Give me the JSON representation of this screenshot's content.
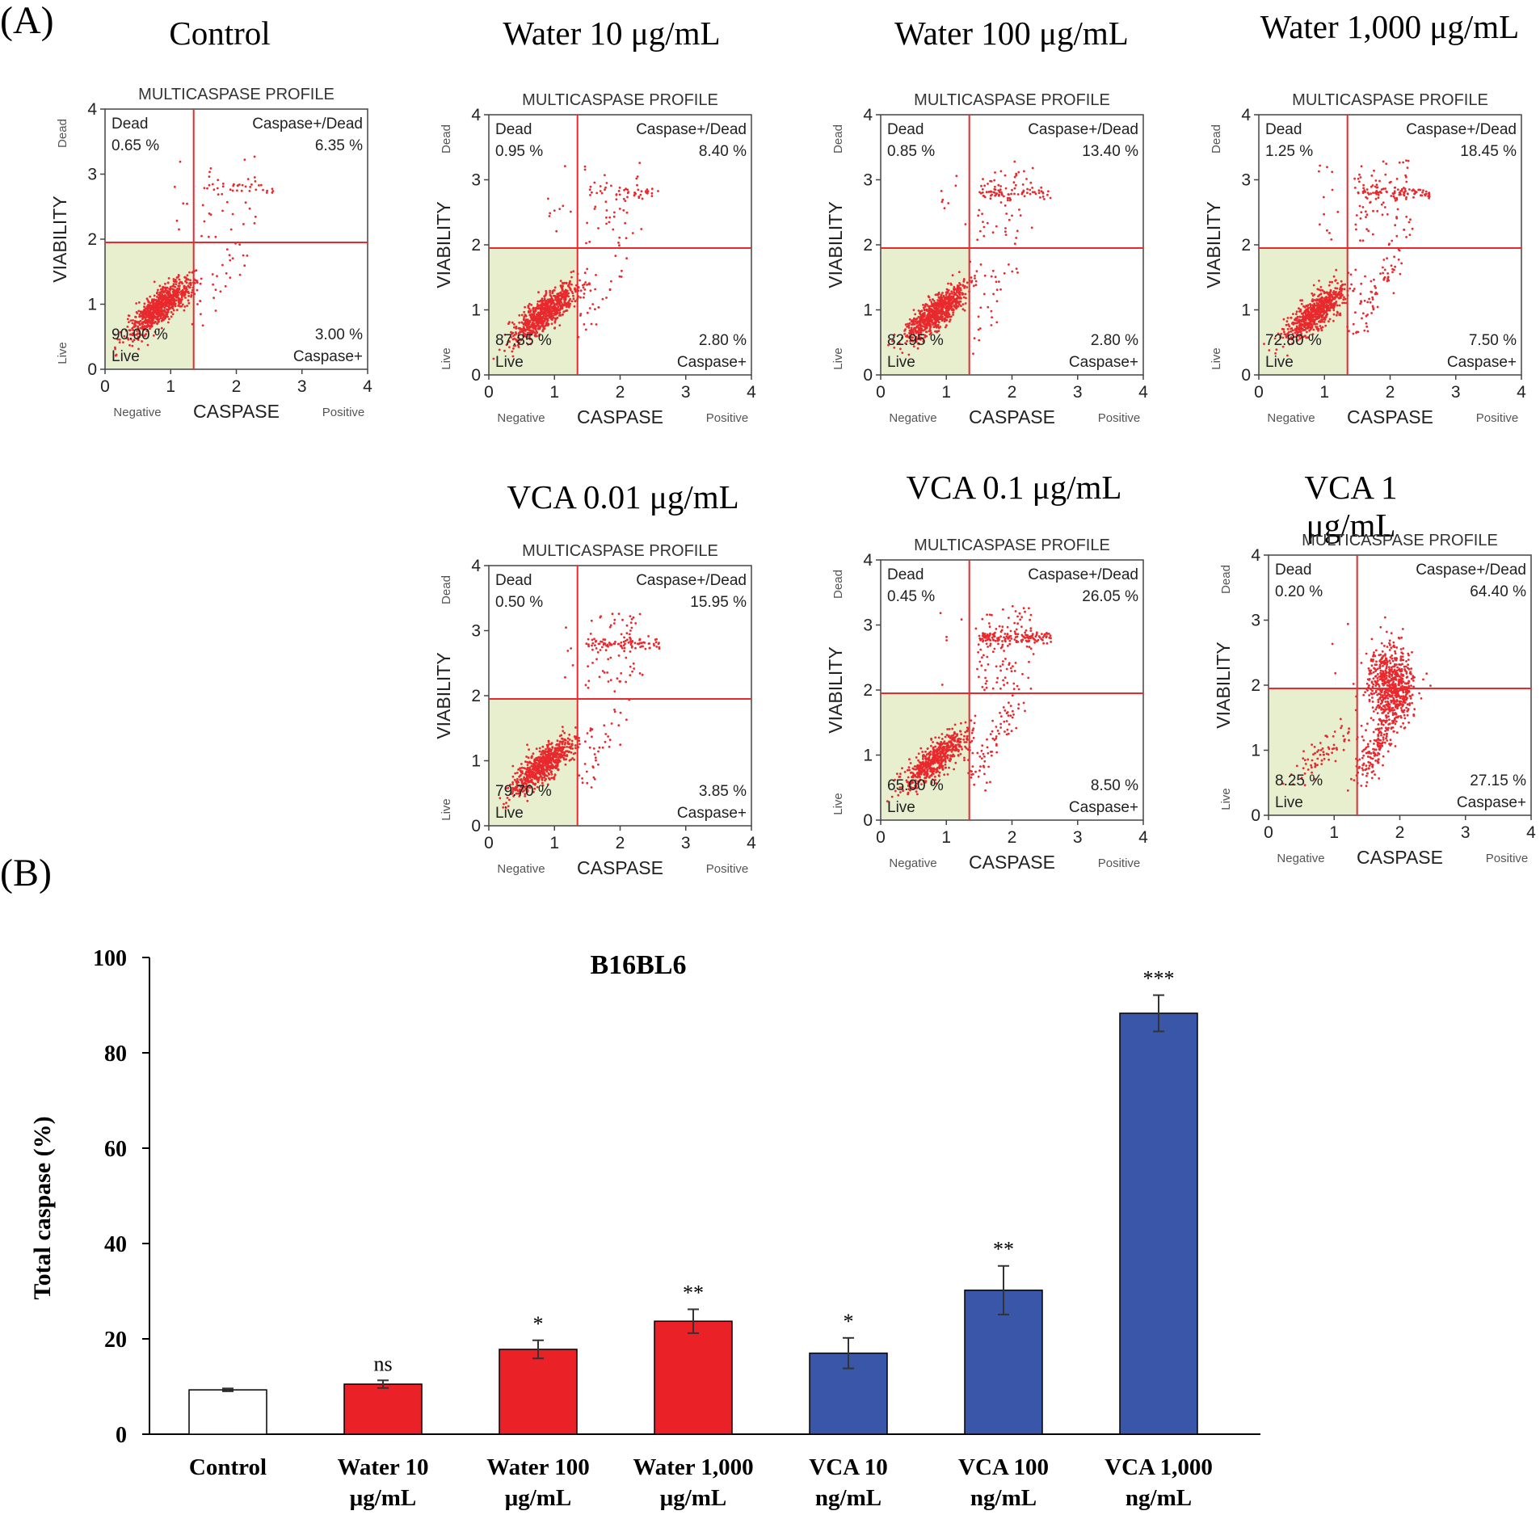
{
  "panel_labels": {
    "a": "(A)",
    "b": "(B)"
  },
  "flow_common": {
    "profile_title": "MULTICASPASE PROFILE",
    "x_axis_label": "CASPASE",
    "y_axis_label": "VIABILITY",
    "x_neg_label": "Negative",
    "x_pos_label": "Positive",
    "y_top_label": "Dead",
    "y_bottom_label": "Live",
    "ticks": [
      "0",
      "1",
      "2",
      "3",
      "4"
    ],
    "quad_dead_label": "Dead",
    "quad_casdead_label": "Caspase+/Dead",
    "quad_live_label": "Live",
    "quad_cas_label": "Caspase+",
    "gate_x": 1.35,
    "gate_y": 1.95
  },
  "flow_plots": [
    {
      "title": "Control",
      "dead": "0.65 %",
      "casdead": "6.35 %",
      "live": "90.00 %",
      "cas": "3.00 %"
    },
    {
      "title": "Water 10 μg/mL",
      "dead": "0.95 %",
      "casdead": "8.40 %",
      "live": "87.85 %",
      "cas": "2.80 %"
    },
    {
      "title": "Water 100 μg/mL",
      "dead": "0.85 %",
      "casdead": "13.40 %",
      "live": "82.95 %",
      "cas": "2.80 %"
    },
    {
      "title": "Water 1,000 μg/mL",
      "dead": "1.25 %",
      "casdead": "18.45 %",
      "live": "72.80 %",
      "cas": "7.50 %"
    },
    {
      "title": "VCA 0.01 μg/mL",
      "dead": "0.50 %",
      "casdead": "15.95 %",
      "live": "79.70 %",
      "cas": "3.85 %"
    },
    {
      "title": "VCA 0.1 μg/mL",
      "dead": "0.45 %",
      "casdead": "26.05 %",
      "live": "65.00 %",
      "cas": "8.50 %"
    },
    {
      "title": "VCA 1 μg/mL",
      "dead": "0.20 %",
      "casdead": "64.40 %",
      "live": "8.25 %",
      "cas": "27.15 %"
    }
  ],
  "chart_data": {
    "type": "bar",
    "title": "B16BL6",
    "xlabel": "",
    "ylabel": "Total caspase (%)",
    "ylim": [
      0,
      100
    ],
    "yticks": [
      0,
      20,
      40,
      60,
      80,
      100
    ],
    "categories": [
      [
        "Control"
      ],
      [
        "Water 10",
        "μg/mL"
      ],
      [
        "Water 100",
        "μg/mL"
      ],
      [
        "Water 1,000",
        "μg/mL"
      ],
      [
        "VCA 10",
        "ng/mL"
      ],
      [
        "VCA 100",
        "ng/mL"
      ],
      [
        "VCA 1,000",
        "ng/mL"
      ]
    ],
    "values": [
      9.3,
      10.5,
      17.8,
      23.7,
      17.0,
      30.2,
      88.3
    ],
    "errors": [
      0.3,
      0.8,
      1.9,
      2.5,
      3.2,
      5.1,
      3.8
    ],
    "significance": [
      "",
      "ns",
      "*",
      "**",
      "*",
      "**",
      "***"
    ],
    "colors": [
      "#ffffff",
      "#ea2227",
      "#ea2227",
      "#ea2227",
      "#3a56a8",
      "#3a56a8",
      "#3a56a8"
    ]
  }
}
